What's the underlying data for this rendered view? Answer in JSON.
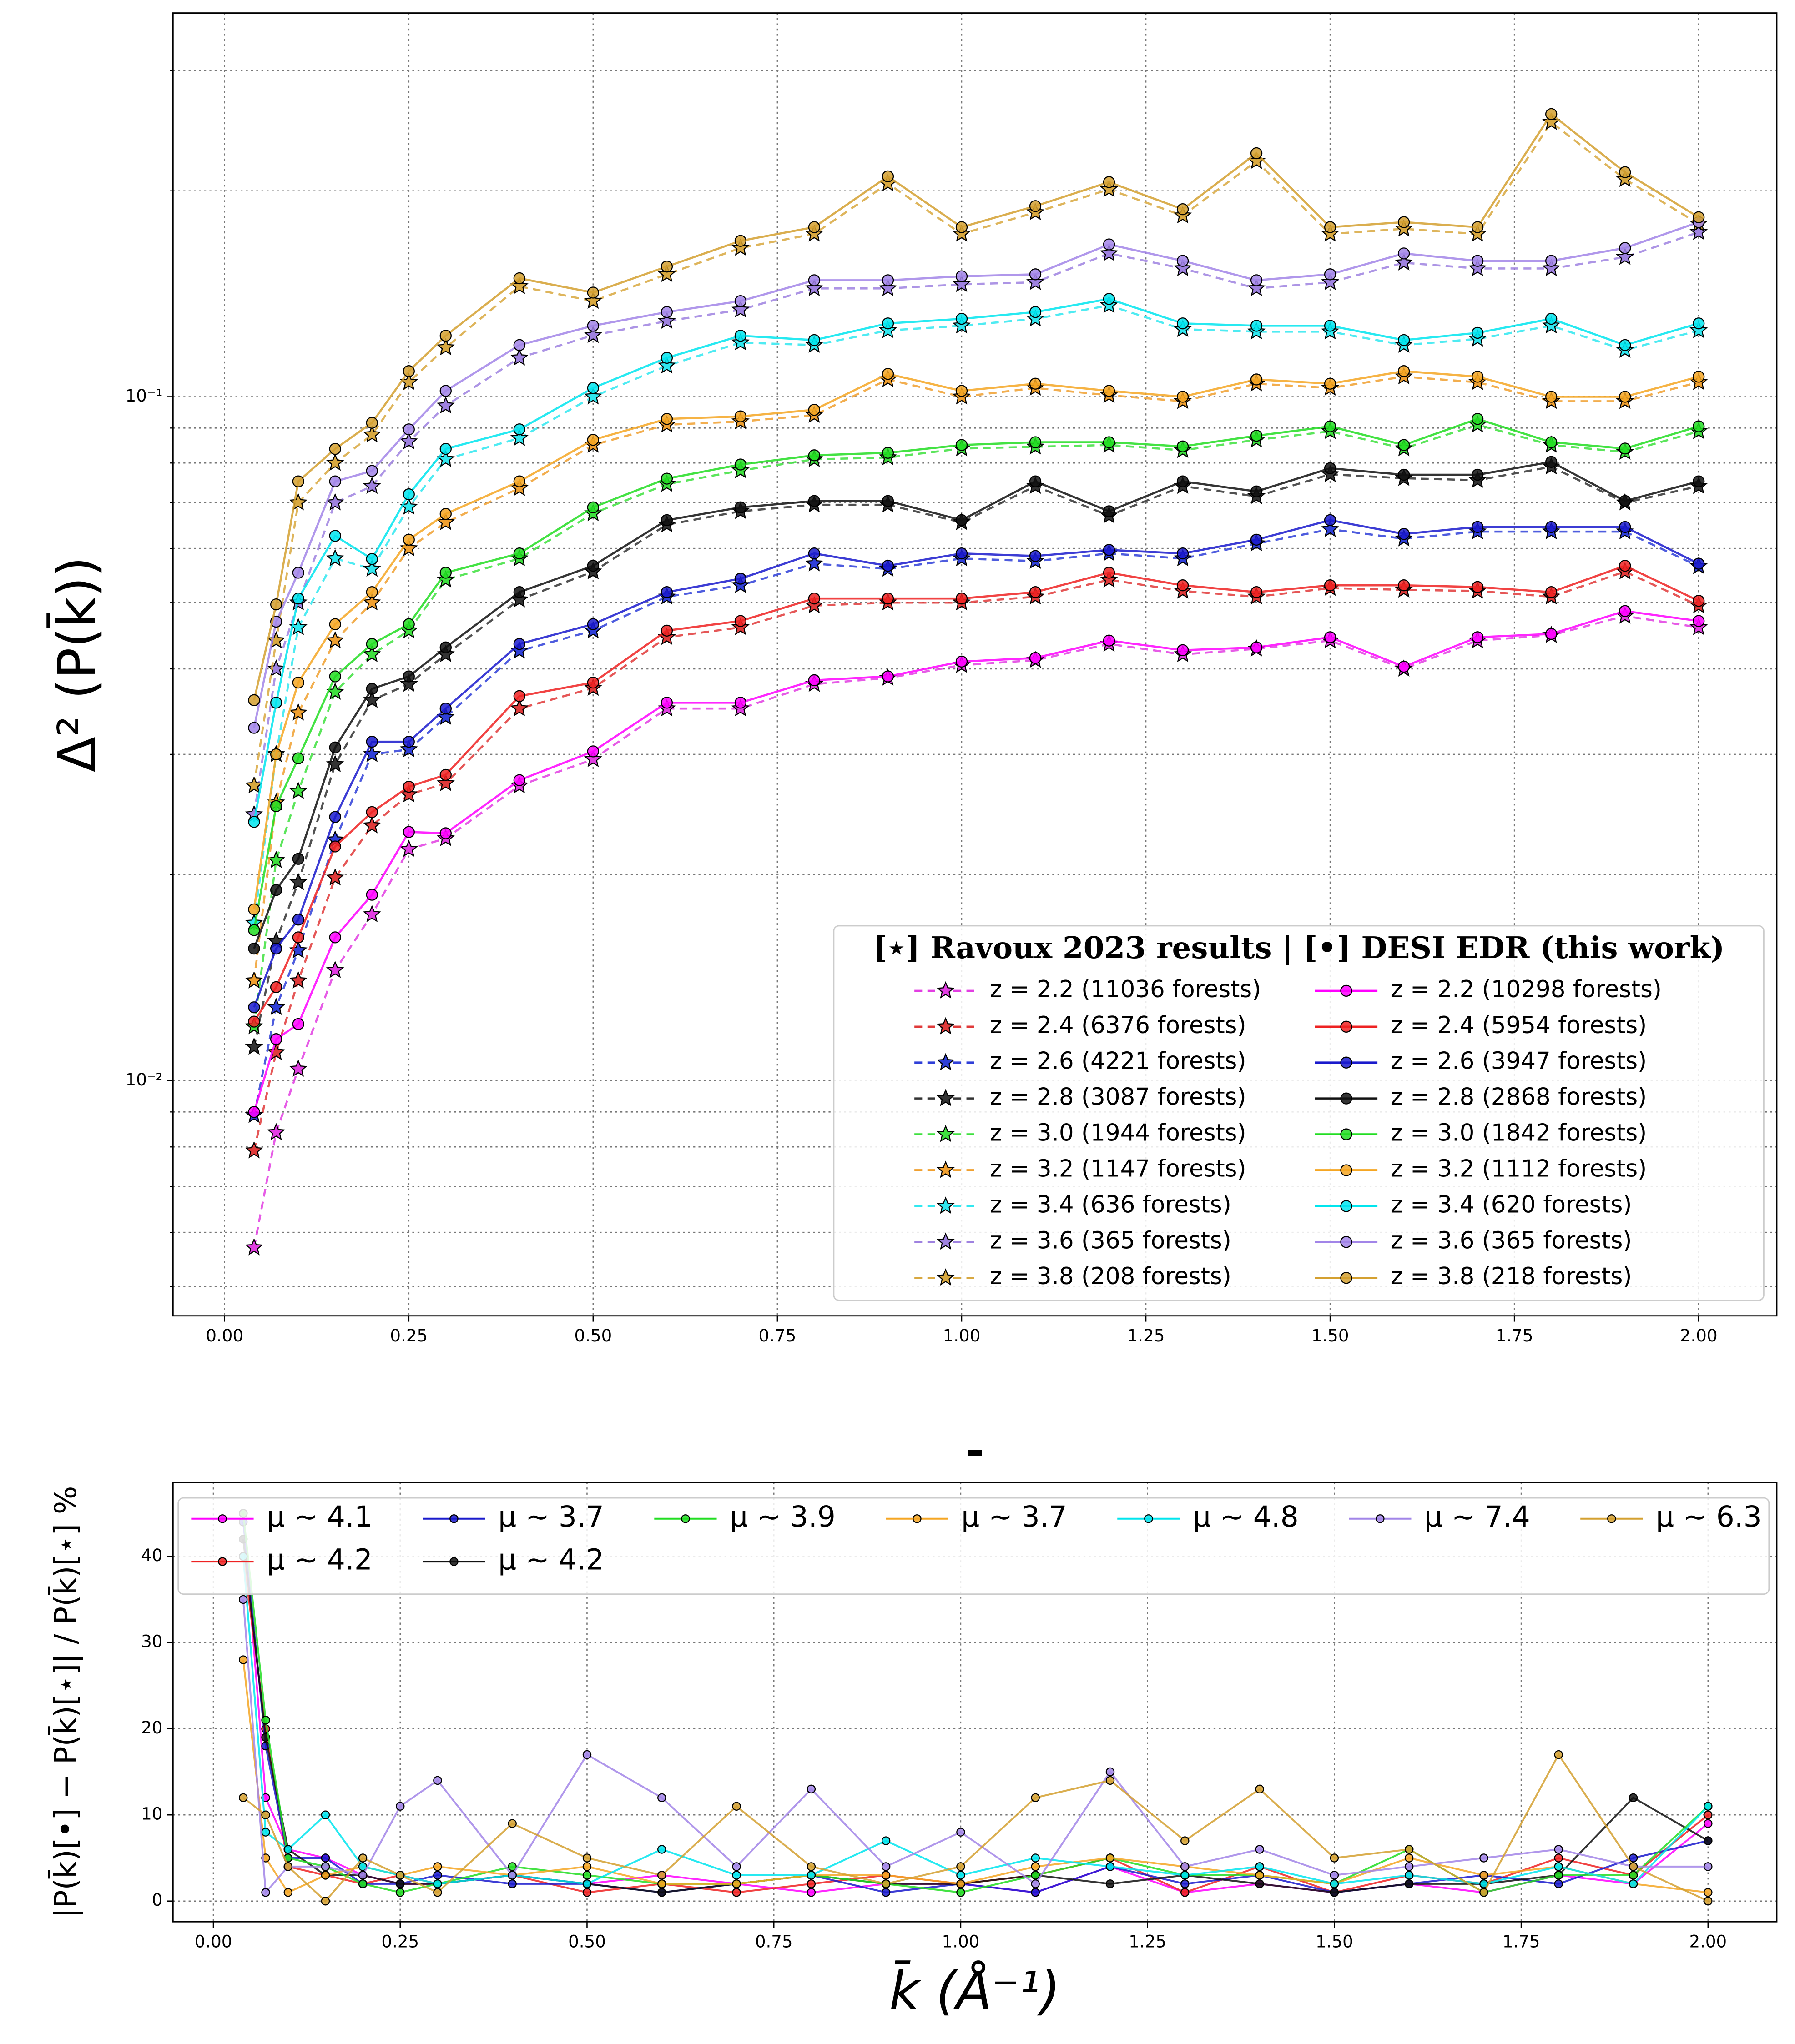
{
  "chart_data": [
    {
      "type": "line",
      "log_y": true,
      "grid": true,
      "ylabel": "Δ² (P(k̄))",
      "legend_title": "[⋆] Ravoux 2023 results | [•] DESI EDR (this work)",
      "legend_loc": "lower right",
      "legend_columns": 2,
      "xlim": [
        -0.07,
        2.106
      ],
      "ylim": [
        0.00453,
        0.364
      ],
      "xticks": [
        {
          "value": 0,
          "label": "0.00"
        },
        0.25,
        {
          "value": 0.5,
          "label": "0.50"
        },
        0.75,
        {
          "value": 1,
          "label": "1.00"
        },
        1.25,
        {
          "value": 1.5,
          "label": "1.50"
        },
        1.75,
        {
          "value": 2,
          "label": "2.00"
        }
      ],
      "yticks": [
        {
          "value": 0.01,
          "label": "10⁻²"
        },
        {
          "value": 0.1,
          "label": "10⁻¹"
        }
      ],
      "yminorticks": [
        0.005,
        0.006,
        0.007,
        0.008,
        0.009,
        0.02,
        0.03,
        0.04,
        0.05,
        0.06,
        0.07,
        0.08,
        0.09,
        0.2,
        0.3
      ],
      "x": [
        0.04,
        0.07,
        0.1,
        0.15,
        0.2,
        0.25,
        0.3,
        0.4,
        0.5,
        0.6,
        0.7,
        0.8,
        0.9,
        1.0,
        1.1,
        1.2,
        1.3,
        1.4,
        1.5,
        1.6,
        1.7,
        1.8,
        1.9,
        2.0
      ],
      "series": [
        {
          "name": "z = 2.2 (11036 forests)",
          "color": "#e23ee2",
          "linestyle": "dashed",
          "marker": "star",
          "values": [
            0.0057,
            0.0084,
            0.0104,
            0.0145,
            0.0175,
            0.0218,
            0.0226,
            0.027,
            0.0295,
            0.035,
            0.035,
            0.038,
            0.0388,
            0.0405,
            0.0412,
            0.0435,
            0.042,
            0.0428,
            0.044,
            0.04,
            0.044,
            0.0448,
            0.0478,
            0.046
          ]
        },
        {
          "name": "z = 2.4 (6376 forests)",
          "color": "#e03a3a",
          "linestyle": "dashed",
          "marker": "star",
          "values": [
            0.0079,
            0.011,
            0.014,
            0.0198,
            0.0236,
            0.0262,
            0.0272,
            0.035,
            0.0375,
            0.0445,
            0.046,
            0.0495,
            0.05,
            0.05,
            0.051,
            0.054,
            0.052,
            0.051,
            0.0525,
            0.0522,
            0.052,
            0.051,
            0.0555,
            0.0495
          ]
        },
        {
          "name": "z = 2.6 (4221 forests)",
          "color": "#2f3fd8",
          "linestyle": "dashed",
          "marker": "star",
          "values": [
            0.0089,
            0.0128,
            0.0155,
            0.0225,
            0.03,
            0.0305,
            0.034,
            0.0425,
            0.0455,
            0.051,
            0.053,
            0.057,
            0.056,
            0.058,
            0.0575,
            0.059,
            0.058,
            0.061,
            0.064,
            0.062,
            0.0635,
            0.0635,
            0.0635,
            0.0565
          ]
        },
        {
          "name": "z = 2.8 (3087 forests)",
          "color": "#333333",
          "linestyle": "dashed",
          "marker": "star",
          "values": [
            0.0112,
            0.016,
            0.0195,
            0.029,
            0.036,
            0.038,
            0.042,
            0.0505,
            0.0555,
            0.065,
            0.068,
            0.0695,
            0.0695,
            0.0655,
            0.074,
            0.067,
            0.074,
            0.0715,
            0.077,
            0.076,
            0.0755,
            0.079,
            0.07,
            0.074
          ]
        },
        {
          "name": "z = 3.0 (1944 forests)",
          "color": "#3ee03e",
          "linestyle": "dashed",
          "marker": "star",
          "values": [
            0.012,
            0.021,
            0.0265,
            0.037,
            0.042,
            0.0455,
            0.054,
            0.058,
            0.0675,
            0.0745,
            0.078,
            0.081,
            0.0815,
            0.084,
            0.0845,
            0.085,
            0.0835,
            0.0865,
            0.089,
            0.084,
            0.091,
            0.085,
            0.083,
            0.089
          ]
        },
        {
          "name": "z = 3.2 (1147 forests)",
          "color": "#f0a030",
          "linestyle": "dashed",
          "marker": "star",
          "values": [
            0.014,
            0.0255,
            0.0345,
            0.044,
            0.05,
            0.06,
            0.0655,
            0.0735,
            0.085,
            0.091,
            0.092,
            0.094,
            0.106,
            0.1,
            0.103,
            0.1005,
            0.0985,
            0.1045,
            0.103,
            0.107,
            0.105,
            0.0985,
            0.0985,
            0.105
          ]
        },
        {
          "name": "z = 3.4 (636 forests)",
          "color": "#30e8f0",
          "linestyle": "dashed",
          "marker": "star",
          "values": [
            0.017,
            0.03,
            0.046,
            0.058,
            0.056,
            0.069,
            0.081,
            0.087,
            0.1,
            0.111,
            0.12,
            0.119,
            0.125,
            0.127,
            0.13,
            0.136,
            0.1255,
            0.1245,
            0.1245,
            0.119,
            0.1215,
            0.127,
            0.117,
            0.125
          ]
        },
        {
          "name": "z = 3.6 (365 forests)",
          "color": "#9f82e0",
          "linestyle": "dashed",
          "marker": "star",
          "values": [
            0.0245,
            0.04,
            0.05,
            0.07,
            0.074,
            0.086,
            0.097,
            0.114,
            0.123,
            0.129,
            0.134,
            0.144,
            0.144,
            0.146,
            0.147,
            0.162,
            0.154,
            0.144,
            0.147,
            0.157,
            0.154,
            0.154,
            0.16,
            0.174
          ]
        },
        {
          "name": "z = 3.8 (208 forests)",
          "color": "#d8a840",
          "linestyle": "dashed",
          "marker": "star",
          "values": [
            0.027,
            0.044,
            0.07,
            0.08,
            0.088,
            0.105,
            0.118,
            0.145,
            0.138,
            0.151,
            0.165,
            0.173,
            0.205,
            0.173,
            0.186,
            0.201,
            0.184,
            0.221,
            0.173,
            0.176,
            0.173,
            0.252,
            0.208,
            0.179
          ]
        },
        {
          "name": "z = 2.2 (10298 forests)",
          "color": "#ff00ff",
          "linestyle": "solid",
          "marker": "circle",
          "values": [
            0.009,
            0.0115,
            0.0121,
            0.0162,
            0.0187,
            0.0231,
            0.023,
            0.0275,
            0.0303,
            0.0357,
            0.0357,
            0.0385,
            0.039,
            0.041,
            0.0415,
            0.044,
            0.0426,
            0.043,
            0.0445,
            0.0403,
            0.0445,
            0.045,
            0.0486,
            0.047
          ]
        },
        {
          "name": "z = 2.4 (5954 forests)",
          "color": "#ee2222",
          "linestyle": "solid",
          "marker": "circle",
          "values": [
            0.0122,
            0.0137,
            0.0162,
            0.022,
            0.0247,
            0.0269,
            0.028,
            0.0365,
            0.0382,
            0.0455,
            0.047,
            0.0507,
            0.0507,
            0.0507,
            0.0518,
            0.0553,
            0.053,
            0.0518,
            0.053,
            0.053,
            0.0527,
            0.0518,
            0.0566,
            0.0503
          ]
        },
        {
          "name": "z = 2.6 (3947 forests)",
          "color": "#1a1acc",
          "linestyle": "solid",
          "marker": "circle",
          "values": [
            0.0128,
            0.0156,
            0.0172,
            0.0243,
            0.0313,
            0.0313,
            0.035,
            0.0435,
            0.0465,
            0.0518,
            0.0542,
            0.059,
            0.0566,
            0.059,
            0.0585,
            0.0597,
            0.059,
            0.0618,
            0.066,
            0.063,
            0.0645,
            0.0645,
            0.0645,
            0.057
          ]
        },
        {
          "name": "z = 2.8 (2868 forests)",
          "color": "#111111",
          "linestyle": "solid",
          "marker": "circle",
          "values": [
            0.0156,
            0.019,
            0.0211,
            0.0307,
            0.0374,
            0.039,
            0.043,
            0.0518,
            0.0566,
            0.066,
            0.0689,
            0.0704,
            0.0704,
            0.066,
            0.0752,
            0.068,
            0.0752,
            0.0727,
            0.0786,
            0.0769,
            0.0769,
            0.0803,
            0.0704,
            0.0752
          ]
        },
        {
          "name": "z = 3.0 (1842 forests)",
          "color": "#22dd22",
          "linestyle": "solid",
          "marker": "circle",
          "values": [
            0.0166,
            0.0252,
            0.0296,
            0.039,
            0.0435,
            0.0465,
            0.0553,
            0.059,
            0.0689,
            0.0759,
            0.0796,
            0.0821,
            0.0828,
            0.085,
            0.0858,
            0.0858,
            0.0846,
            0.0877,
            0.0905,
            0.085,
            0.0928,
            0.0858,
            0.084,
            0.0905
          ]
        },
        {
          "name": "z = 3.2 (1112 forests)",
          "color": "#f5a623",
          "linestyle": "solid",
          "marker": "circle",
          "values": [
            0.0178,
            0.03,
            0.0382,
            0.0465,
            0.0518,
            0.0618,
            0.0674,
            0.0752,
            0.0865,
            0.0928,
            0.0936,
            0.0957,
            0.108,
            0.102,
            0.1045,
            0.102,
            0.1,
            0.106,
            0.1045,
            0.109,
            0.107,
            0.1,
            0.1,
            0.107
          ]
        },
        {
          "name": "z = 3.4 (620 forests)",
          "color": "#00e5ee",
          "linestyle": "solid",
          "marker": "circle",
          "values": [
            0.0239,
            0.0357,
            0.0507,
            0.0626,
            0.0579,
            0.072,
            0.0839,
            0.0896,
            0.103,
            0.114,
            0.1228,
            0.121,
            0.128,
            0.13,
            0.133,
            0.139,
            0.128,
            0.127,
            0.127,
            0.121,
            0.124,
            0.13,
            0.119,
            0.128
          ]
        },
        {
          "name": "z = 3.6 (365 forests)",
          "color": "#a285e8",
          "linestyle": "solid",
          "marker": "circle",
          "values": [
            0.0328,
            0.0469,
            0.0553,
            0.0752,
            0.0779,
            0.0896,
            0.102,
            0.119,
            0.127,
            0.133,
            0.138,
            0.148,
            0.148,
            0.15,
            0.151,
            0.167,
            0.158,
            0.148,
            0.151,
            0.162,
            0.158,
            0.158,
            0.165,
            0.18
          ]
        },
        {
          "name": "z = 3.8 (218 forests)",
          "color": "#d4a030",
          "linestyle": "solid",
          "marker": "circle",
          "values": [
            0.036,
            0.0497,
            0.0752,
            0.0839,
            0.0916,
            0.109,
            0.1228,
            0.149,
            0.142,
            0.155,
            0.169,
            0.177,
            0.21,
            0.177,
            0.19,
            0.206,
            0.188,
            0.227,
            0.177,
            0.18,
            0.177,
            0.259,
            0.213,
            0.183
          ]
        }
      ]
    },
    {
      "type": "line",
      "log_y": false,
      "grid": true,
      "title": "-",
      "xlabel": "k̄ (Å⁻¹)",
      "ylabel": "|P(k̄)[•] − P(k̄)[⋆]| / P(k̄)[⋆] %",
      "legend_loc": "upper left",
      "legend_columns": 7,
      "xlim": [
        -0.054,
        2.092
      ],
      "ylim": [
        -2.4,
        48.6
      ],
      "xticks": [
        {
          "value": 0,
          "label": "0.00"
        },
        0.25,
        {
          "value": 0.5,
          "label": "0.50"
        },
        0.75,
        {
          "value": 1,
          "label": "1.00"
        },
        1.25,
        {
          "value": 1.5,
          "label": "1.50"
        },
        1.75,
        {
          "value": 2,
          "label": "2.00"
        }
      ],
      "yticks": [
        0,
        10,
        20,
        30,
        40
      ],
      "x": [
        0.04,
        0.07,
        0.1,
        0.15,
        0.2,
        0.25,
        0.3,
        0.4,
        0.5,
        0.6,
        0.7,
        0.8,
        0.9,
        1.0,
        1.1,
        1.2,
        1.3,
        1.4,
        1.5,
        1.6,
        1.7,
        1.8,
        1.9,
        2.0
      ],
      "series": [
        {
          "name": "μ ∼ 4.1",
          "color": "#ff00ff",
          "linestyle": "solid",
          "marker": "circle",
          "values": [
            45,
            12,
            6,
            5,
            3,
            2,
            2,
            3,
            2,
            3,
            2,
            1,
            2,
            2,
            1,
            4,
            1,
            2,
            1,
            2,
            1,
            3,
            2,
            9
          ]
        },
        {
          "name": "μ ∼ 4.2",
          "color": "#ee2222",
          "linestyle": "solid",
          "marker": "circle",
          "values": [
            40,
            20,
            4,
            3,
            2,
            3,
            2,
            3,
            1,
            2,
            1,
            2,
            3,
            2,
            3,
            5,
            1,
            4,
            1,
            3,
            2,
            5,
            3,
            10
          ]
        },
        {
          "name": "μ ∼ 3.7",
          "color": "#1a1acc",
          "linestyle": "solid",
          "marker": "circle",
          "values": [
            44,
            18,
            5,
            5,
            2,
            2,
            3,
            2,
            2,
            1,
            2,
            3,
            1,
            2,
            1,
            4,
            2,
            3,
            1,
            2,
            3,
            2,
            5,
            7
          ]
        },
        {
          "name": "μ ∼ 4.2",
          "color": "#111111",
          "linestyle": "solid",
          "marker": "circle",
          "values": [
            42,
            19,
            6,
            3,
            3,
            2,
            2,
            3,
            2,
            1,
            2,
            3,
            2,
            2,
            3,
            2,
            3,
            2,
            1,
            2,
            2,
            3,
            12,
            7
          ]
        },
        {
          "name": "μ ∼ 3.9",
          "color": "#22dd22",
          "linestyle": "solid",
          "marker": "circle",
          "values": [
            45,
            21,
            5,
            4,
            2,
            1,
            2,
            4,
            3,
            2,
            2,
            3,
            2,
            1,
            3,
            5,
            3,
            3,
            2,
            6,
            1,
            3,
            3,
            11
          ]
        },
        {
          "name": "μ ∼ 3.7",
          "color": "#f5a623",
          "linestyle": "solid",
          "marker": "circle",
          "values": [
            28,
            5,
            1,
            3,
            4,
            3,
            4,
            3,
            4,
            2,
            2,
            3,
            3,
            2,
            4,
            5,
            4,
            3,
            2,
            5,
            3,
            4,
            2,
            1
          ]
        },
        {
          "name": "μ ∼ 4.8",
          "color": "#00e5ee",
          "linestyle": "solid",
          "marker": "circle",
          "values": [
            40,
            8,
            6,
            10,
            4,
            3,
            2,
            3,
            2,
            6,
            3,
            3,
            7,
            3,
            5,
            4,
            3,
            4,
            2,
            3,
            2,
            4,
            2,
            11
          ]
        },
        {
          "name": "μ ∼ 7.4",
          "color": "#a285e8",
          "linestyle": "solid",
          "marker": "circle",
          "values": [
            35,
            1,
            4,
            4,
            3,
            11,
            14,
            3,
            17,
            12,
            4,
            13,
            4,
            8,
            2,
            15,
            4,
            6,
            3,
            4,
            5,
            6,
            4,
            4
          ]
        },
        {
          "name": "μ ∼ 6.3",
          "color": "#d4a030",
          "linestyle": "solid",
          "marker": "circle",
          "values": [
            12,
            10,
            4,
            0,
            5,
            3,
            1,
            9,
            5,
            3,
            11,
            4,
            2,
            4,
            12,
            14,
            7,
            13,
            5,
            6,
            1,
            17,
            4,
            0
          ]
        }
      ]
    }
  ]
}
